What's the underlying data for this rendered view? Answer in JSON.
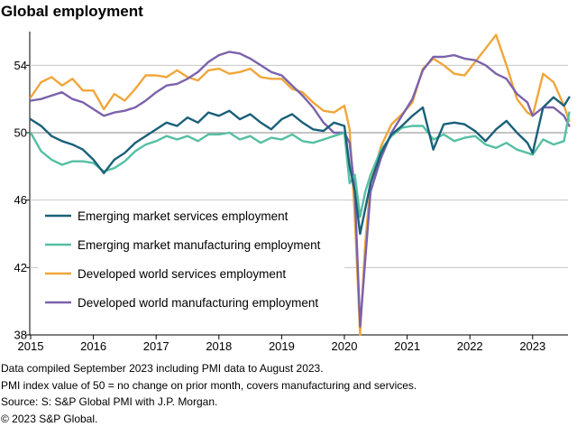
{
  "title": "Global employment",
  "notes": [
    "Data compiled September 2023 including PMI data to August 2023.",
    "PMI index value of 50 = no change on prior month, covers manufacturing and services.",
    "Source: S: S&P Global PMI with J.P. Morgan.",
    "© 2023 S&P Global."
  ],
  "chart_data": {
    "type": "line",
    "x_ticks": [
      "2015",
      "2016",
      "2017",
      "2018",
      "2019",
      "2020",
      "2021",
      "2022",
      "2023"
    ],
    "y_ticks": [
      "38",
      "42",
      "46",
      "50",
      "54"
    ],
    "ylim": [
      38,
      56
    ],
    "x_range": [
      "2015-01",
      "2023-08"
    ],
    "reference_line": 50,
    "grid": "horizontal",
    "legend_position": "lower-left",
    "x": [
      "2015-01",
      "2015-03",
      "2015-05",
      "2015-07",
      "2015-09",
      "2015-11",
      "2016-01",
      "2016-03",
      "2016-05",
      "2016-07",
      "2016-09",
      "2016-11",
      "2017-01",
      "2017-03",
      "2017-05",
      "2017-07",
      "2017-09",
      "2017-11",
      "2018-01",
      "2018-03",
      "2018-05",
      "2018-07",
      "2018-09",
      "2018-11",
      "2019-01",
      "2019-03",
      "2019-05",
      "2019-07",
      "2019-09",
      "2019-11",
      "2020-01",
      "2020-02",
      "2020-03",
      "2020-04",
      "2020-05",
      "2020-06",
      "2020-08",
      "2020-10",
      "2020-12",
      "2021-02",
      "2021-04",
      "2021-06",
      "2021-08",
      "2021-10",
      "2021-12",
      "2022-02",
      "2022-04",
      "2022-06",
      "2022-08",
      "2022-10",
      "2022-12",
      "2023-01",
      "2023-03",
      "2023-05",
      "2023-07",
      "2023-08"
    ],
    "series": [
      {
        "name": "Emerging market services employment",
        "color": "#1a6079",
        "values": [
          50.8,
          50.4,
          49.8,
          49.5,
          49.3,
          49.0,
          48.4,
          47.6,
          48.4,
          48.8,
          49.4,
          49.8,
          50.2,
          50.6,
          50.4,
          50.9,
          50.6,
          51.2,
          51.0,
          51.3,
          50.8,
          51.1,
          50.6,
          50.2,
          50.8,
          51.1,
          50.6,
          50.2,
          50.1,
          50.6,
          50.4,
          48.0,
          46.5,
          44.0,
          45.5,
          47.0,
          48.8,
          49.9,
          50.4,
          51.0,
          51.5,
          49.0,
          50.5,
          50.6,
          50.5,
          50.1,
          49.5,
          50.2,
          50.7,
          50.0,
          49.4,
          48.8,
          51.5,
          52.1,
          51.6,
          52.1
        ]
      },
      {
        "name": "Emerging market manufacturing employment",
        "color": "#55bfa3",
        "values": [
          50.0,
          48.9,
          48.4,
          48.1,
          48.3,
          48.3,
          48.2,
          47.7,
          47.9,
          48.3,
          48.9,
          49.3,
          49.5,
          49.8,
          49.6,
          49.8,
          49.5,
          49.9,
          49.9,
          50.0,
          49.6,
          49.8,
          49.4,
          49.7,
          49.6,
          49.9,
          49.5,
          49.4,
          49.6,
          49.8,
          50.0,
          47.0,
          47.5,
          45.0,
          46.5,
          47.5,
          49.0,
          49.8,
          50.3,
          50.4,
          50.4,
          49.6,
          49.9,
          49.5,
          49.7,
          49.8,
          49.3,
          49.1,
          49.4,
          49.0,
          48.8,
          48.7,
          49.6,
          49.3,
          49.5,
          51.2
        ]
      },
      {
        "name": "Developed world services employment",
        "color": "#f0a63a",
        "values": [
          52.1,
          53.0,
          53.3,
          52.8,
          53.2,
          52.5,
          52.5,
          51.4,
          52.3,
          51.9,
          52.6,
          53.4,
          53.4,
          53.3,
          53.7,
          53.3,
          53.1,
          53.7,
          53.8,
          53.5,
          53.6,
          53.8,
          53.3,
          53.2,
          53.2,
          52.6,
          52.4,
          51.8,
          51.3,
          51.2,
          51.6,
          50.2,
          45.0,
          38.0,
          43.5,
          47.0,
          49.2,
          50.5,
          51.1,
          51.8,
          53.8,
          54.4,
          54.0,
          53.5,
          53.4,
          54.2,
          55.0,
          55.8,
          54.0,
          52.0,
          51.2,
          51.0,
          53.5,
          53.0,
          51.6,
          50.7
        ]
      },
      {
        "name": "Developed world manufacturing employment",
        "color": "#7b62ac",
        "values": [
          51.9,
          52.0,
          52.2,
          52.4,
          52.0,
          51.8,
          51.4,
          51.0,
          51.2,
          51.3,
          51.5,
          51.9,
          52.4,
          52.8,
          52.9,
          53.2,
          53.6,
          54.2,
          54.6,
          54.8,
          54.7,
          54.4,
          54.0,
          53.6,
          53.4,
          52.8,
          52.2,
          51.5,
          50.6,
          50.0,
          50.0,
          49.4,
          46.5,
          38.5,
          42.5,
          46.5,
          48.5,
          50.0,
          51.0,
          52.0,
          53.7,
          54.5,
          54.5,
          54.6,
          54.4,
          54.3,
          54.0,
          53.5,
          53.2,
          52.3,
          51.8,
          51.0,
          51.5,
          51.5,
          51.0,
          50.4
        ]
      }
    ]
  }
}
